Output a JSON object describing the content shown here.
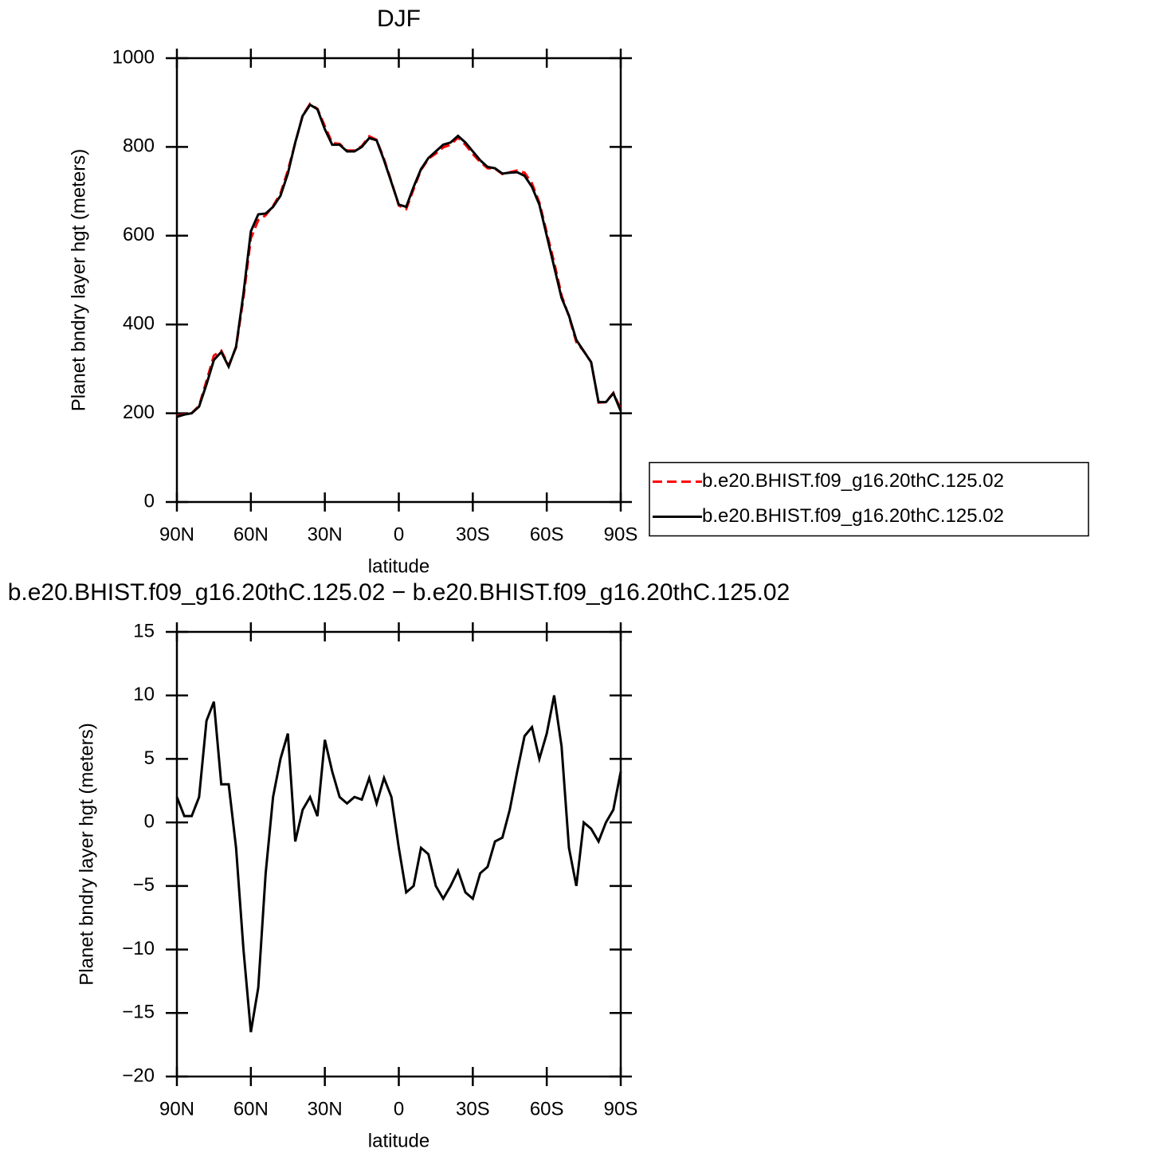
{
  "chart_data": [
    {
      "type": "line",
      "title": "DJF",
      "xlabel": "latitude",
      "ylabel": "Planet bndry layer hgt (meters)",
      "x": [
        90,
        87,
        84,
        81,
        78,
        75,
        72,
        69,
        66,
        63,
        60,
        57,
        54,
        51,
        48,
        45,
        42,
        39,
        36,
        33,
        30,
        27,
        24,
        21,
        18,
        15,
        12,
        9,
        6,
        3,
        0,
        -3,
        -6,
        -9,
        -12,
        -15,
        -18,
        -21,
        -24,
        -27,
        -30,
        -33,
        -36,
        -39,
        -42,
        -45,
        -48,
        -51,
        -54,
        -57,
        -60,
        -63,
        -66,
        -69,
        -72,
        -75,
        -78,
        -81,
        -84,
        -87,
        -90
      ],
      "series": [
        {
          "name": "b.e20.BHIST.f09_g16.20thC.125.02",
          "color": "#ff0000",
          "line_style": "dashed",
          "values": [
            194,
            198,
            200,
            217,
            273,
            330,
            341,
            308,
            348,
            460,
            594,
            635,
            646,
            667,
            695,
            747,
            809,
            871,
            897,
            886,
            847,
            809,
            807,
            792,
            792,
            802,
            824,
            816,
            773,
            722,
            668,
            660,
            705,
            748,
            773,
            785,
            799,
            805,
            821,
            805,
            784,
            766,
            752,
            751,
            739,
            743,
            747,
            742,
            718,
            675,
            607,
            540,
            466,
            418,
            360,
            340,
            315,
            224,
            225,
            246,
            209
          ]
        },
        {
          "name": "b.e20.BHIST.f09_g16.20thC.125.02",
          "color": "#000000",
          "line_style": "solid",
          "values": [
            192,
            197,
            200,
            215,
            265,
            320,
            338,
            305,
            350,
            470,
            610,
            648,
            650,
            665,
            690,
            740,
            810,
            870,
            895,
            885,
            840,
            805,
            805,
            790,
            790,
            800,
            820,
            815,
            770,
            720,
            670,
            665,
            710,
            750,
            775,
            790,
            805,
            810,
            825,
            810,
            790,
            770,
            755,
            752,
            740,
            742,
            743,
            735,
            710,
            670,
            600,
            530,
            460,
            420,
            365,
            340,
            315,
            225,
            225,
            245,
            205
          ]
        }
      ],
      "xlim": [
        90,
        -90
      ],
      "xticks": [
        {
          "value": 90,
          "label": "90N"
        },
        {
          "value": 60,
          "label": "60N"
        },
        {
          "value": 30,
          "label": "30N"
        },
        0,
        {
          "value": -30,
          "label": "30S"
        },
        {
          "value": -60,
          "label": "60S"
        },
        {
          "value": -90,
          "label": "90S"
        }
      ],
      "ylim": [
        0,
        1000
      ],
      "yticks": [
        0,
        200,
        400,
        600,
        800,
        1000
      ],
      "legend": "right"
    },
    {
      "type": "line",
      "title": "b.e20.BHIST.f09_g16.20thC.125.02 − b.e20.BHIST.f09_g16.20thC.125.02",
      "xlabel": "latitude",
      "ylabel": "Planet bndry layer hgt (meters)",
      "x": [
        90,
        87,
        84,
        81,
        78,
        75,
        72,
        69,
        66,
        63,
        60,
        57,
        54,
        51,
        48,
        45,
        42,
        39,
        36,
        33,
        30,
        27,
        24,
        21,
        18,
        15,
        12,
        9,
        6,
        3,
        0,
        -3,
        -6,
        -9,
        -12,
        -15,
        -18,
        -21,
        -24,
        -27,
        -30,
        -33,
        -36,
        -39,
        -42,
        -45,
        -48,
        -51,
        -54,
        -57,
        -60,
        -63,
        -66,
        -69,
        -72,
        -75,
        -78,
        -81,
        -84,
        -87,
        -90
      ],
      "series": [
        {
          "color": "#000000",
          "line_style": "solid",
          "values": [
            2,
            0.5,
            0.5,
            2,
            8,
            9.5,
            3,
            3,
            -2,
            -10,
            -16.5,
            -13,
            -4,
            2,
            5,
            7,
            -1.5,
            1,
            2,
            0.5,
            6.5,
            4,
            2,
            1.5,
            2,
            1.8,
            3.5,
            1.5,
            3.5,
            2,
            -2,
            -5.5,
            -5,
            -2,
            -2.5,
            -5,
            -6,
            -5,
            -3.8,
            -5.5,
            -6,
            -4,
            -3.5,
            -1.5,
            -1.2,
            1,
            4,
            6.8,
            7.5,
            5,
            7,
            10,
            6,
            -2,
            -5,
            0,
            -0.5,
            -1.5,
            0,
            1,
            4
          ]
        }
      ],
      "xlim": [
        90,
        -90
      ],
      "xticks": [
        {
          "value": 90,
          "label": "90N"
        },
        {
          "value": 60,
          "label": "60N"
        },
        {
          "value": 30,
          "label": "30N"
        },
        0,
        {
          "value": -30,
          "label": "30S"
        },
        {
          "value": -60,
          "label": "60S"
        },
        {
          "value": -90,
          "label": "90S"
        }
      ],
      "ylim": [
        -20,
        15
      ],
      "yticks": [
        {
          "value": -20,
          "label": "−20"
        },
        {
          "value": -15,
          "label": "−15"
        },
        {
          "value": -10,
          "label": "−10"
        },
        {
          "value": -5,
          "label": "−5"
        },
        0,
        5,
        10,
        15
      ]
    }
  ]
}
